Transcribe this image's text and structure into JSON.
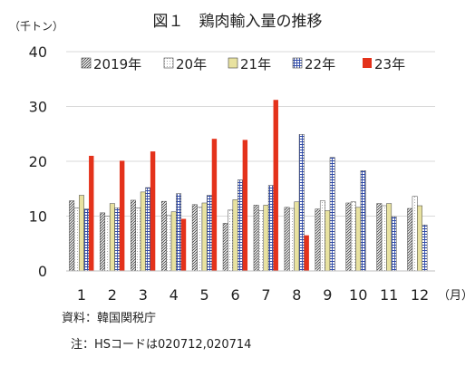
{
  "chart_data": {
    "type": "bar",
    "title": "図１　鶏肉輸入量の推移",
    "ylabel": "（千トン）",
    "xunit": "（月）",
    "ylim": [
      0,
      40
    ],
    "yticks": [
      0,
      10,
      20,
      30,
      40
    ],
    "grid": true,
    "legend": "top",
    "categories": [
      "1",
      "2",
      "3",
      "4",
      "5",
      "6",
      "7",
      "8",
      "9",
      "10",
      "11",
      "12"
    ],
    "series": [
      {
        "name": "2019年",
        "pattern": "diagonal-hatch",
        "color": "#555555",
        "values": [
          12.8,
          10.6,
          12.9,
          12.7,
          12.1,
          8.7,
          12.0,
          11.6,
          11.3,
          12.4,
          12.3,
          11.4
        ]
      },
      {
        "name": "20年",
        "pattern": "dots",
        "color": "#888888",
        "values": [
          11.5,
          10.0,
          11.5,
          10.1,
          11.6,
          11.1,
          11.0,
          11.4,
          12.8,
          12.6,
          11.9,
          13.6
        ]
      },
      {
        "name": "21年",
        "pattern": "solid",
        "color": "#e8e2a0",
        "values": [
          13.8,
          12.3,
          14.4,
          10.8,
          12.4,
          13.0,
          12.0,
          12.6,
          11.0,
          11.6,
          12.3,
          11.9
        ]
      },
      {
        "name": "22年",
        "pattern": "grid",
        "color": "#3a52a8",
        "values": [
          11.3,
          11.5,
          15.2,
          14.1,
          13.8,
          16.6,
          15.6,
          24.9,
          20.7,
          18.3,
          9.9,
          8.4
        ]
      },
      {
        "name": "23年",
        "pattern": "solid",
        "color": "#e4321b",
        "values": [
          21.0,
          20.1,
          21.8,
          9.5,
          24.1,
          23.9,
          31.2,
          6.5,
          null,
          null,
          null,
          null
        ]
      }
    ]
  },
  "source_text": "資料：韓国関税庁",
  "note_text": "注：HSコードは020712,020714"
}
